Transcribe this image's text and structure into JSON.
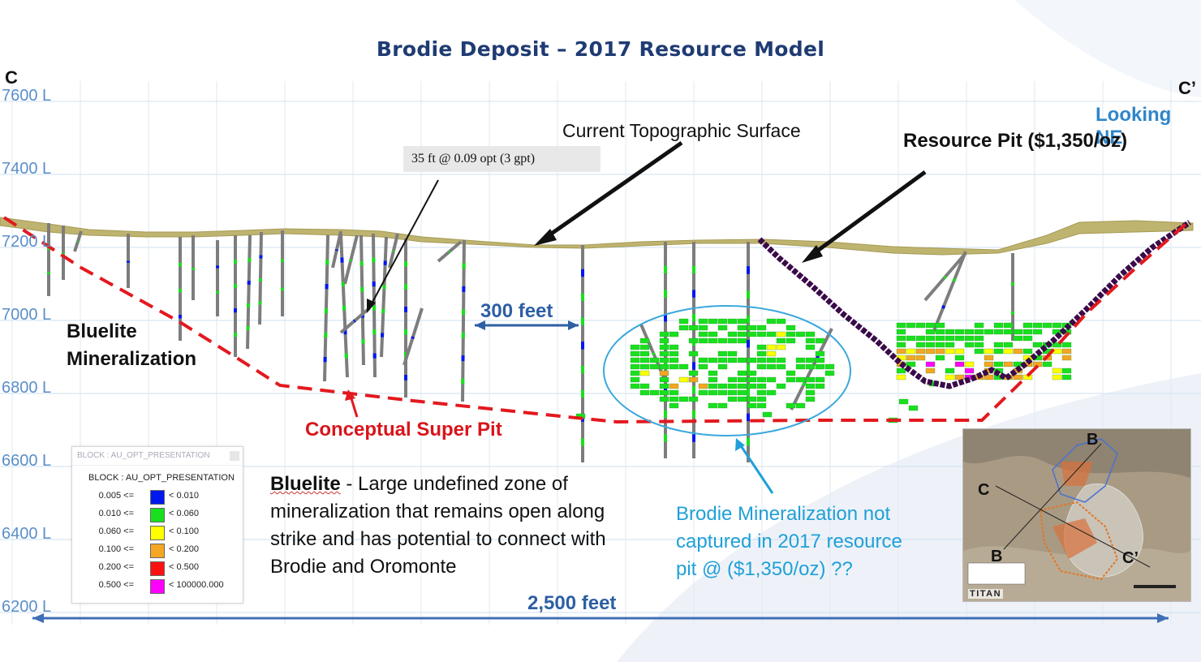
{
  "title": "Brodie Deposit – 2017 Resource Model",
  "section": {
    "left_end": "C",
    "right_end": "C’",
    "view_direction": "Looking NE",
    "levels": [
      "7600 L",
      "7400 L",
      "7200 L",
      "7000 L",
      "6800 L",
      "6600 L",
      "6400 L",
      "6200 L"
    ]
  },
  "annotations": {
    "topography": "Current Topographic Surface",
    "resource_pit": "Resource Pit ($1,350/oz)",
    "intercept": "35 ft @ 0.09 opt (3 gpt)",
    "bluelite_line1": "Bluelite",
    "bluelite_line2": "Mineralization",
    "scale_300": "300 feet",
    "super_pit": "Conceptual Super Pit",
    "scale_2500": "2,500 feet"
  },
  "description": {
    "heading": "Bluelite",
    "text": " - Large undefined zone of mineralization that remains open along strike and has potential to connect with Brodie and Oromonte"
  },
  "brodie_note": "Brodie Mineralization not captured in 2017 resource pit @ ($1,350/oz) ??",
  "legend": {
    "window_title": "BLOCK : AU_OPT_PRESENTATION",
    "title": "BLOCK : AU_OPT_PRESENTATION",
    "rows": [
      {
        "low": "0.005 <=",
        "high": "< 0.010",
        "color": "#0018f0"
      },
      {
        "low": "0.010 <=",
        "high": "< 0.060",
        "color": "#19e01e"
      },
      {
        "low": "0.060 <=",
        "high": "< 0.100",
        "color": "#ffff00"
      },
      {
        "low": "0.100 <=",
        "high": "< 0.200",
        "color": "#f5a623"
      },
      {
        "low": "0.200 <=",
        "high": "< 0.500",
        "color": "#ff1010"
      },
      {
        "low": "0.500 <=",
        "high": "< 100000.000",
        "color": "#ff00ff"
      }
    ]
  },
  "inset_map": {
    "labels": [
      "B",
      "C",
      "B",
      "C’"
    ],
    "logo": "TITAN"
  },
  "colors": {
    "title": "#1f3b73",
    "level_text": "#5b8ec9",
    "super_pit": "#d9141b",
    "resource_pit": "#3a0a4a",
    "scale": "#2d5fa3",
    "note": "#1fa0d8",
    "topography": "#b9b06a"
  }
}
